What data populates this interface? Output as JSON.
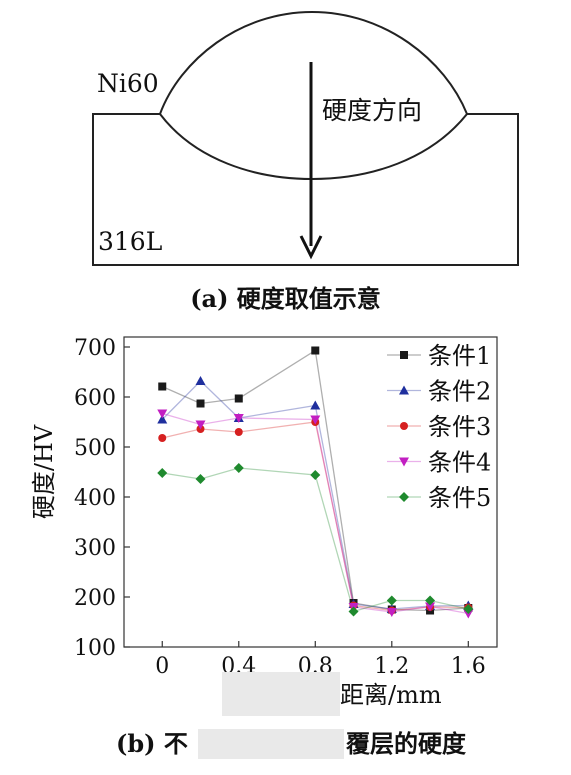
{
  "panel_a": {
    "coating_label": "Ni60",
    "direction_label": "硬度方向",
    "substrate_label": "316L",
    "caption": "(a) 硬度取值示意"
  },
  "panel_b": {
    "caption_start": "(b) 不",
    "caption_end": "覆层的硬度"
  },
  "chart_data": {
    "type": "line",
    "ylabel": "硬度/HV",
    "xlabel_visible": "距离/mm",
    "xlim": [
      -0.2,
      1.75
    ],
    "ylim": [
      100,
      720
    ],
    "xticks": [
      0,
      0.4,
      0.8,
      1.2,
      1.6
    ],
    "xtick_labels": [
      "0",
      "0.4",
      "0.8",
      "1.2",
      "1.6"
    ],
    "yticks": [
      100,
      200,
      300,
      400,
      500,
      600,
      700
    ],
    "ytick_labels": [
      "100",
      "200",
      "300",
      "400",
      "500",
      "600",
      "700"
    ],
    "legend_position": "top-right",
    "x": [
      0,
      0.2,
      0.4,
      0.8,
      1.0,
      1.2,
      1.4,
      1.6
    ],
    "series": [
      {
        "name": "条件1",
        "marker": "square",
        "color": "#1a1a1a",
        "values": [
          621,
          587,
          597,
          693,
          188,
          175,
          173,
          178
        ]
      },
      {
        "name": "条件2",
        "marker": "triangle",
        "color": "#1f2f9e",
        "values": [
          555,
          632,
          558,
          583,
          186,
          176,
          182,
          183
        ]
      },
      {
        "name": "条件3",
        "marker": "circle",
        "color": "#d62020",
        "values": [
          518,
          536,
          530,
          550,
          183,
          173,
          180,
          179
        ]
      },
      {
        "name": "条件4",
        "marker": "tri-down",
        "color": "#c21fc2",
        "values": [
          567,
          545,
          558,
          555,
          180,
          170,
          181,
          167
        ]
      },
      {
        "name": "条件5",
        "marker": "diamond",
        "color": "#1f8a2e",
        "values": [
          448,
          436,
          458,
          444,
          171,
          193,
          193,
          176
        ]
      }
    ]
  }
}
